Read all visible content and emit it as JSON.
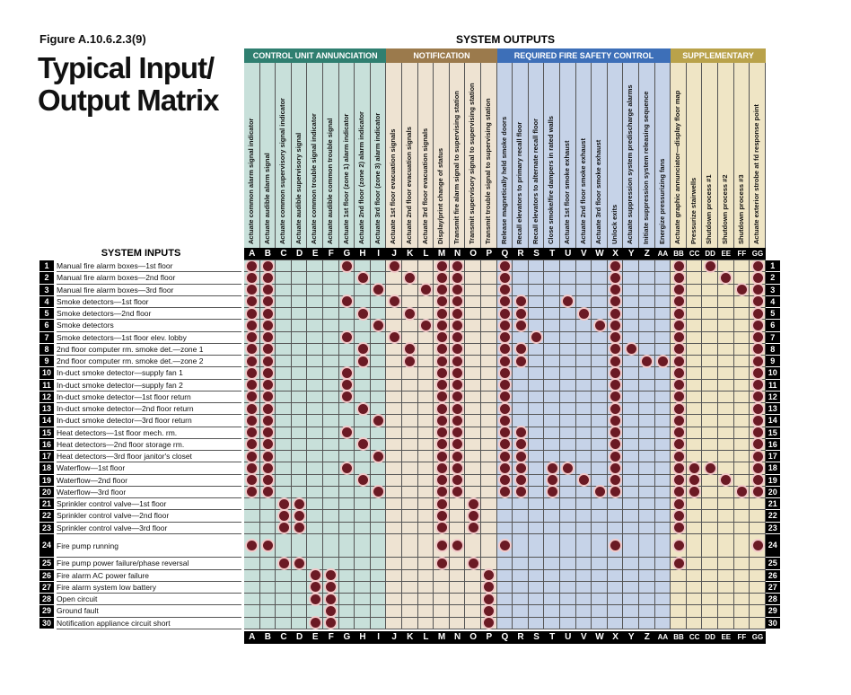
{
  "figure_label": "Figure A.10.6.2.3(9)",
  "title_line1": "Typical Input/",
  "title_line2": "Output Matrix",
  "outputs_heading": "SYSTEM OUTPUTS",
  "inputs_heading": "SYSTEM INPUTS",
  "colors": {
    "dot": "#6b1a24",
    "dot_halo": "#f2c9c9"
  },
  "groups": [
    {
      "label": "CONTROL UNIT ANNUNCIATION",
      "span": 9,
      "header_color": "#2f7f70",
      "cell_color": "#c8e0da"
    },
    {
      "label": "NOTIFICATION",
      "span": 7,
      "header_color": "#9b7a4c",
      "cell_color": "#eee3d2"
    },
    {
      "label": "REQUIRED FIRE SAFETY CONTROL",
      "span": 11,
      "header_color": "#3d6fb8",
      "cell_color": "#c6d3e8"
    },
    {
      "label": "SUPPLEMENTARY",
      "span": 6,
      "header_color": "#b9a24a",
      "cell_color": "#efe5c5"
    }
  ],
  "columns": [
    {
      "id": "A",
      "label": "Actuate common alarm signal indicator"
    },
    {
      "id": "B",
      "label": "Actuate audible alarm signal"
    },
    {
      "id": "C",
      "label": "Actuate common supervisory signal indicator"
    },
    {
      "id": "D",
      "label": "Actuate audible supervisory signal"
    },
    {
      "id": "E",
      "label": "Actuate common trouble signal indicator"
    },
    {
      "id": "F",
      "label": "Actuate audible common trouble signal"
    },
    {
      "id": "G",
      "label": "Actuate 1st floor (zone 1) alarm indicator"
    },
    {
      "id": "H",
      "label": "Actuate 2nd floor (zone 2) alarm indicator"
    },
    {
      "id": "I",
      "label": "Actuate 3rd floor (zone 3) alarm indicator"
    },
    {
      "id": "J",
      "label": "Actuate 1st floor evacuation signals"
    },
    {
      "id": "K",
      "label": "Actuate 2nd floor evacuation signals"
    },
    {
      "id": "L",
      "label": "Actuate 3rd floor evacuation signals"
    },
    {
      "id": "M",
      "label": "Display/print change of status"
    },
    {
      "id": "N",
      "label": "Transmit fire alarm signal to supervising station"
    },
    {
      "id": "O",
      "label": "Transmit supervisory signal to supervising station"
    },
    {
      "id": "P",
      "label": "Transmit trouble signal to supervising station"
    },
    {
      "id": "Q",
      "label": "Release magnetically held smoke doors"
    },
    {
      "id": "R",
      "label": "Recall elevators to primary recall floor"
    },
    {
      "id": "S",
      "label": "Recall elevators to alternate recall floor"
    },
    {
      "id": "T",
      "label": "Close smoke/fire dampers in rated walls"
    },
    {
      "id": "U",
      "label": "Actuate 1st floor smoke exhaust"
    },
    {
      "id": "V",
      "label": "Actuate 2nd floor smoke exhaust"
    },
    {
      "id": "W",
      "label": "Actuate 3rd floor smoke exhaust"
    },
    {
      "id": "X",
      "label": "Unlock exits"
    },
    {
      "id": "Y",
      "label": "Actuate suppression system predischarge alarms"
    },
    {
      "id": "Z",
      "label": "Initiate suppression system releasing sequence"
    },
    {
      "id": "AA",
      "label": "Energize pressurizing fans"
    },
    {
      "id": "BB",
      "label": "Actuate graphic annunciator—display floor map"
    },
    {
      "id": "CC",
      "label": "Pressurize stairwells"
    },
    {
      "id": "DD",
      "label": "Shutdown process #1"
    },
    {
      "id": "EE",
      "label": "Shutdown process #2"
    },
    {
      "id": "FF",
      "label": "Shutdown process #3"
    },
    {
      "id": "GG",
      "label": "Actuate exterior strobe at fd response point"
    }
  ],
  "rows": [
    {
      "num": "1",
      "label": "Manual fire alarm boxes—1st floor",
      "marks": [
        "A",
        "B",
        "G",
        "J",
        "M",
        "N",
        "Q",
        "X",
        "BB",
        "DD",
        "GG"
      ]
    },
    {
      "num": "2",
      "label": "Manual fire alarm boxes—2nd floor",
      "marks": [
        "A",
        "B",
        "H",
        "K",
        "M",
        "N",
        "Q",
        "X",
        "BB",
        "EE",
        "GG"
      ]
    },
    {
      "num": "3",
      "label": "Manual fire alarm boxes—3rd floor",
      "marks": [
        "A",
        "B",
        "I",
        "L",
        "M",
        "N",
        "Q",
        "X",
        "BB",
        "FF",
        "GG"
      ]
    },
    {
      "num": "4",
      "label": "Smoke detectors—1st floor",
      "marks": [
        "A",
        "B",
        "G",
        "J",
        "M",
        "N",
        "Q",
        "R",
        "U",
        "X",
        "BB",
        "GG"
      ]
    },
    {
      "num": "5",
      "label": "Smoke detectors—2nd floor",
      "marks": [
        "A",
        "B",
        "H",
        "K",
        "M",
        "N",
        "Q",
        "R",
        "V",
        "X",
        "BB",
        "GG"
      ]
    },
    {
      "num": "6",
      "label": "Smoke detectors",
      "marks": [
        "A",
        "B",
        "I",
        "L",
        "M",
        "N",
        "Q",
        "R",
        "W",
        "X",
        "BB",
        "GG"
      ]
    },
    {
      "num": "7",
      "label": "Smoke detectors—1st floor elev. lobby",
      "marks": [
        "A",
        "B",
        "G",
        "J",
        "M",
        "N",
        "Q",
        "S",
        "X",
        "BB",
        "GG"
      ]
    },
    {
      "num": "8",
      "label": "2nd floor computer rm. smoke det.—zone 1",
      "marks": [
        "A",
        "B",
        "H",
        "K",
        "M",
        "N",
        "Q",
        "R",
        "X",
        "Y",
        "BB",
        "GG"
      ]
    },
    {
      "num": "9",
      "label": "2nd floor computer rm. smoke det.—zone 2",
      "marks": [
        "A",
        "B",
        "H",
        "K",
        "M",
        "N",
        "Q",
        "R",
        "X",
        "Z",
        "AA",
        "BB",
        "GG"
      ]
    },
    {
      "num": "10",
      "label": "In-duct smoke detector—supply fan 1",
      "marks": [
        "A",
        "B",
        "G",
        "M",
        "N",
        "Q",
        "X",
        "BB",
        "GG"
      ]
    },
    {
      "num": "11",
      "label": "In-duct smoke detector—supply fan 2",
      "marks": [
        "A",
        "B",
        "G",
        "M",
        "N",
        "Q",
        "X",
        "BB",
        "GG"
      ]
    },
    {
      "num": "12",
      "label": "In-duct smoke detector—1st floor return",
      "marks": [
        "A",
        "B",
        "G",
        "M",
        "N",
        "Q",
        "X",
        "BB",
        "GG"
      ]
    },
    {
      "num": "13",
      "label": "In-duct smoke detector—2nd floor return",
      "marks": [
        "A",
        "B",
        "H",
        "M",
        "N",
        "Q",
        "X",
        "BB",
        "GG"
      ]
    },
    {
      "num": "14",
      "label": "In-duct smoke detector—3rd floor return",
      "marks": [
        "A",
        "B",
        "I",
        "M",
        "N",
        "Q",
        "X",
        "BB",
        "GG"
      ]
    },
    {
      "num": "15",
      "label": "Heat detectors—1st floor mech. rm.",
      "marks": [
        "A",
        "B",
        "G",
        "M",
        "N",
        "Q",
        "R",
        "X",
        "BB",
        "GG"
      ]
    },
    {
      "num": "16",
      "label": "Heat detectors—2nd floor storage rm.",
      "marks": [
        "A",
        "B",
        "H",
        "M",
        "N",
        "Q",
        "R",
        "X",
        "BB",
        "GG"
      ]
    },
    {
      "num": "17",
      "label": "Heat detectors—3rd floor janitor's closet",
      "marks": [
        "A",
        "B",
        "I",
        "M",
        "N",
        "Q",
        "R",
        "X",
        "BB",
        "GG"
      ]
    },
    {
      "num": "18",
      "label": "Waterflow—1st floor",
      "marks": [
        "A",
        "B",
        "G",
        "M",
        "N",
        "Q",
        "R",
        "T",
        "U",
        "X",
        "BB",
        "CC",
        "DD",
        "GG"
      ]
    },
    {
      "num": "19",
      "label": "Waterflow—2nd floor",
      "marks": [
        "A",
        "B",
        "H",
        "M",
        "N",
        "Q",
        "R",
        "T",
        "V",
        "X",
        "BB",
        "CC",
        "EE",
        "GG"
      ]
    },
    {
      "num": "20",
      "label": "Waterflow—3rd floor",
      "marks": [
        "A",
        "B",
        "I",
        "M",
        "N",
        "Q",
        "R",
        "T",
        "W",
        "X",
        "BB",
        "CC",
        "FF",
        "GG"
      ]
    },
    {
      "num": "21",
      "label": "Sprinkler control valve—1st floor",
      "marks": [
        "C",
        "D",
        "M",
        "O",
        "BB"
      ]
    },
    {
      "num": "22",
      "label": "Sprinkler control valve—2nd floor",
      "marks": [
        "C",
        "D",
        "M",
        "O",
        "BB"
      ]
    },
    {
      "num": "23",
      "label": "Sprinkler control valve—3rd floor",
      "marks": [
        "C",
        "D",
        "M",
        "O",
        "BB"
      ]
    },
    {
      "num": "24",
      "label": "Fire pump running",
      "tall": true,
      "marks": [
        "A",
        "B",
        "M",
        "N",
        "Q",
        "X",
        "BB",
        "GG"
      ]
    },
    {
      "num": "25",
      "label": "Fire pump power failure/phase reversal",
      "marks": [
        "C",
        "D",
        "M",
        "O",
        "BB"
      ]
    },
    {
      "num": "26",
      "label": "Fire alarm AC power failure",
      "marks": [
        "E",
        "F",
        "P"
      ]
    },
    {
      "num": "27",
      "label": "Fire alarm system low battery",
      "marks": [
        "E",
        "F",
        "P"
      ]
    },
    {
      "num": "28",
      "label": "Open circuit",
      "marks": [
        "E",
        "F",
        "P"
      ]
    },
    {
      "num": "29",
      "label": "Ground fault",
      "marks": [
        "F",
        "P"
      ]
    },
    {
      "num": "30",
      "label": "Notification appliance circuit short",
      "marks": [
        "E",
        "F",
        "P"
      ]
    }
  ]
}
